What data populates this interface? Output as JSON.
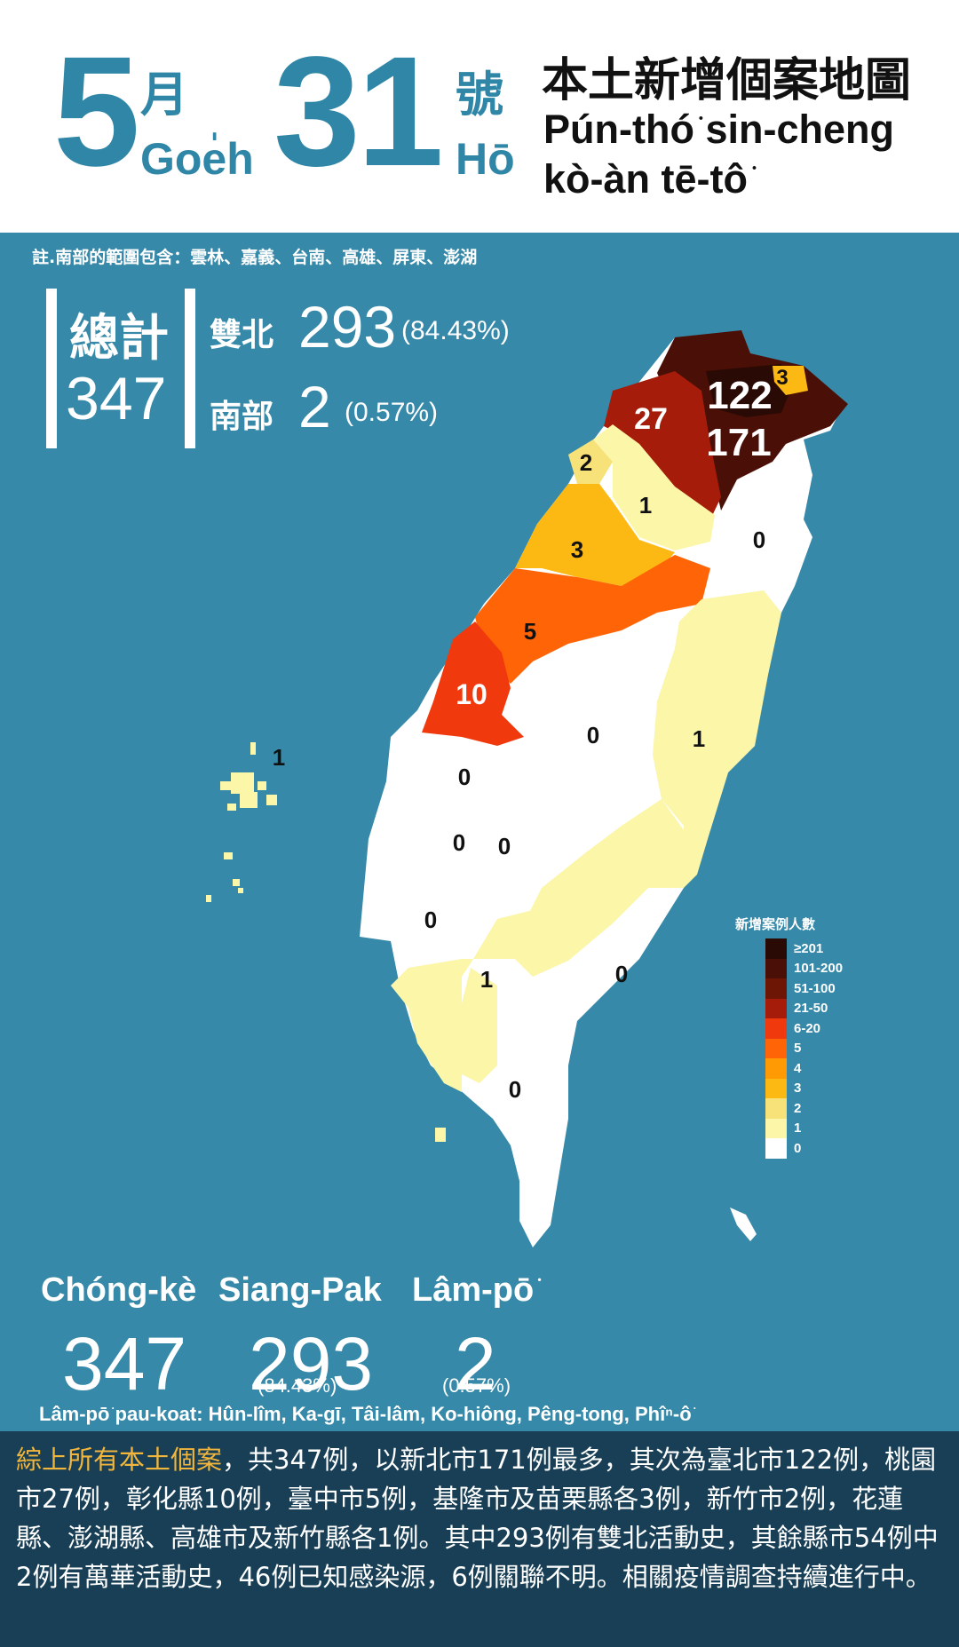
{
  "header": {
    "month_num": "5",
    "month_zh": "月",
    "month_poj": "Goe̍h",
    "day_num": "31",
    "day_zh": "號",
    "day_poj": "Hō",
    "title_zh": "本土新增個案地圖",
    "title_poj": "Pún-thó͘ sin-cheng kò-àn tē-tô͘"
  },
  "note_top": "註.南部的範圍包含：雲林、嘉義、台南、高雄、屏東、澎湖",
  "totals": {
    "total_label": "總計",
    "total_value": "347",
    "shuangbei_label": "雙北",
    "shuangbei_value": "293",
    "shuangbei_pct": "(84.43%)",
    "south_label": "南部",
    "south_value": "2",
    "south_pct": "(0.57%)"
  },
  "counties": {
    "taipei": "122",
    "new_taipei": "171",
    "keelung": "3",
    "taoyuan": "27",
    "hsinchu_city": "2",
    "hsinchu_county": "1",
    "yilan": "0",
    "miaoli": "3",
    "taichung": "5",
    "changhua": "10",
    "nantou": "0",
    "hualien": "1",
    "yunlin": "0",
    "chiayi_city": "0",
    "chiayi_county": "0",
    "tainan": "0",
    "kaohsiung": "1",
    "taitung": "0",
    "pingtung": "0",
    "penghu": "1"
  },
  "legend": {
    "title": "新增案例人數",
    "items": [
      {
        "label": "≥201",
        "color": "#2a0a04"
      },
      {
        "label": "101-200",
        "color": "#4a0f06"
      },
      {
        "label": "51-100",
        "color": "#6e1606"
      },
      {
        "label": "21-50",
        "color": "#a51d0a"
      },
      {
        "label": "6-20",
        "color": "#f03a0e"
      },
      {
        "label": "5",
        "color": "#ff6406"
      },
      {
        "label": "4",
        "color": "#ff9a05"
      },
      {
        "label": "3",
        "color": "#fdb913"
      },
      {
        "label": "2",
        "color": "#f7e27a"
      },
      {
        "label": "1",
        "color": "#fbf6a8"
      },
      {
        "label": "0",
        "color": "#ffffff"
      }
    ]
  },
  "summary": {
    "total_label": "Chóng-kè",
    "total_value": "347",
    "shuangbei_label": "Siang-Pak",
    "shuangbei_value": "293",
    "shuangbei_pct": "(84.43%)",
    "south_label": "Lâm-pō͘",
    "south_value": "2",
    "south_pct": "(0.57%)",
    "note": "Lâm-pō͘ pau-koat: Hûn-lîm, Ka-gī, Tâi-lâm, Ko-hiông, Pêng-tong, Phîⁿ-ô͘"
  },
  "description": {
    "highlight": "綜上所有本土個案",
    "text": "，共347例，以新北市171例最多，其次為臺北市122例，桃園市27例，彰化縣10例，臺中市5例，基隆市及苗栗縣各3例，新竹市2例，花蓮縣、澎湖縣、高雄市及新竹縣各1例。其中293例有雙北活動史，其餘縣市54例中2例有萬華活動史，46例已知感染源，6例關聯不明。相關疫情調查持續進行中。"
  }
}
